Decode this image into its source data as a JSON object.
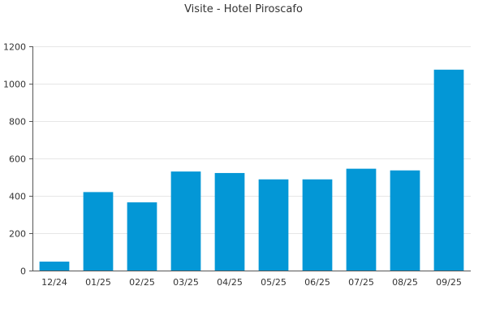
{
  "chart_data": {
    "type": "bar",
    "title": "Visite - Hotel Piroscafo",
    "xlabel": "",
    "ylabel": "",
    "categories": [
      "12/24",
      "01/25",
      "02/25",
      "03/25",
      "04/25",
      "05/25",
      "06/25",
      "07/25",
      "08/25",
      "09/25"
    ],
    "values": [
      48,
      420,
      365,
      530,
      522,
      488,
      488,
      545,
      536,
      1075
    ],
    "ylim": [
      0,
      1200
    ],
    "yticks": [
      0,
      200,
      400,
      600,
      800,
      1000,
      1200
    ],
    "grid": true,
    "legend": "none",
    "colors": {
      "bar": "#0397d6",
      "grid": "#e6e6e6",
      "axis": "#555555",
      "text": "#333333"
    }
  }
}
